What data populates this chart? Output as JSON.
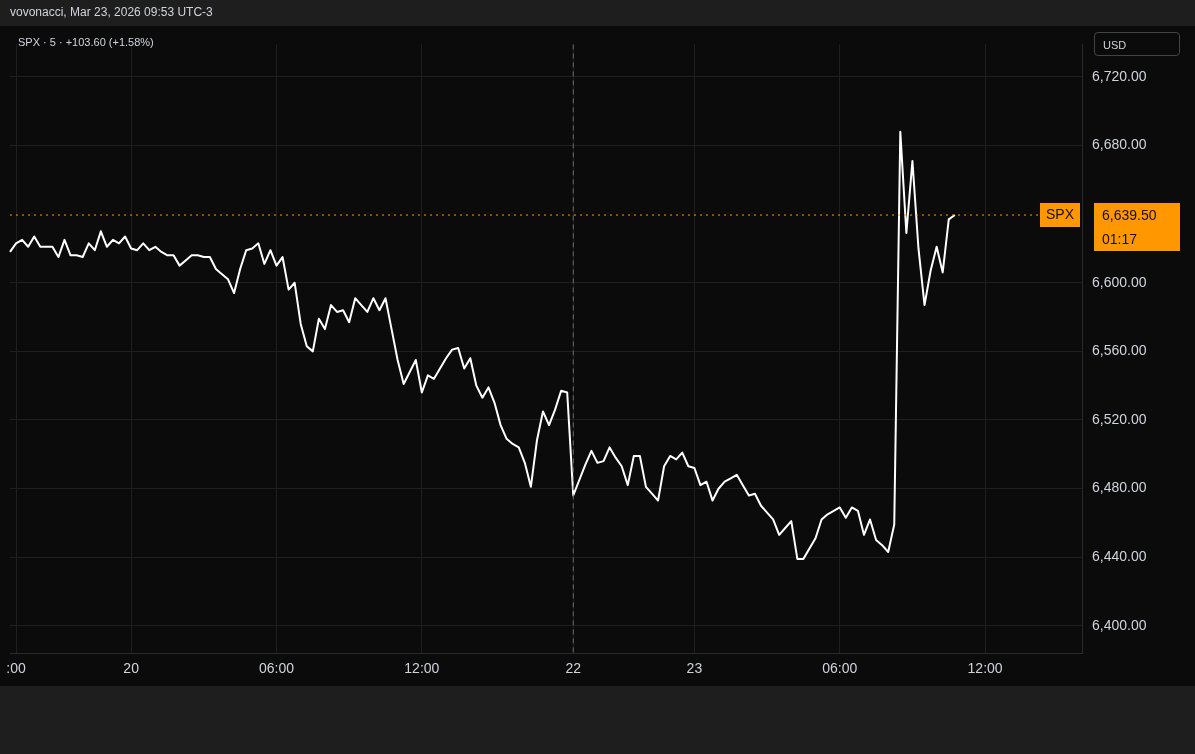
{
  "chart_data": {
    "type": "line",
    "title": "vovonacci, Mar 23, 2026 09:53 UTC-3",
    "subtitle": "SPX · 5 · +103.60 (+1.58%)",
    "annotations": [
      "USD",
      "6,639.50",
      "01:17"
    ],
    "categories": [
      null,
      ":00",
      null,
      null,
      null,
      null,
      null,
      null,
      null,
      null,
      null,
      null,
      null,
      null,
      null,
      null,
      null,
      null,
      null,
      null,
      "20",
      null,
      null,
      null,
      null,
      null,
      null,
      null,
      null,
      null,
      null,
      null,
      null,
      null,
      null,
      null,
      null,
      null,
      null,
      null,
      null,
      null,
      null,
      null,
      "06:00",
      null,
      null,
      null,
      null,
      null,
      null,
      null,
      null,
      null,
      null,
      null,
      null,
      null,
      null,
      null,
      null,
      null,
      null,
      null,
      null,
      null,
      null,
      null,
      "12:00",
      null,
      null,
      null,
      null,
      null,
      null,
      null,
      null,
      null,
      null,
      null,
      null,
      null,
      null,
      null,
      null,
      null,
      null,
      null,
      null,
      null,
      null,
      null,
      null,
      "22",
      null,
      null,
      null,
      null,
      null,
      null,
      null,
      null,
      null,
      null,
      null,
      null,
      null,
      null,
      null,
      null,
      null,
      null,
      null,
      "23",
      null,
      null,
      null,
      null,
      null,
      null,
      null,
      null,
      null,
      null,
      null,
      null,
      null,
      null,
      null,
      null,
      null,
      null,
      null,
      null,
      null,
      null,
      null,
      "06:00",
      null,
      null,
      null,
      null,
      null,
      null,
      null,
      null,
      null,
      null,
      null,
      null,
      null,
      null,
      null,
      null,
      null,
      null,
      null,
      null,
      null,
      null,
      null,
      "12:00",
      null,
      null,
      null,
      null,
      null,
      null,
      null,
      null,
      null,
      null,
      null,
      null,
      null,
      null,
      null,
      null
    ],
    "series": [
      {
        "color": "#ffffff",
        "values": [
          6618,
          6623,
          6625,
          6621,
          6627,
          6621,
          6621,
          6621,
          6615,
          6625,
          6616,
          6616,
          6615,
          6623,
          6619,
          6630,
          6621,
          6625,
          6623,
          6627,
          6620,
          6619,
          6623,
          6619,
          6621,
          6618,
          6616,
          6616,
          6610,
          6613,
          6616,
          6616,
          6615,
          6615,
          6608,
          6605,
          6602,
          6594,
          6608,
          6619,
          6620,
          6623,
          6611,
          6619,
          6610,
          6615,
          6596,
          6600,
          6576,
          6563,
          6560,
          6579,
          6573,
          6587,
          6583,
          6584,
          6577,
          6591,
          6587,
          6583,
          6591,
          6584,
          6591,
          6573,
          6555,
          6541,
          6548,
          6555,
          6536,
          6546,
          6544,
          6550,
          6556,
          6561,
          6562,
          6550,
          6556,
          6540,
          6533,
          6539,
          6530,
          6517,
          6509,
          6506,
          6504,
          6495,
          6481,
          6508,
          6525,
          6517,
          6526,
          6537,
          6536,
          6476,
          6485,
          6494,
          6502,
          6495,
          6496,
          6504,
          6498,
          6493,
          6482,
          6499,
          6499,
          6481,
          6477,
          6473,
          6493,
          6499,
          6497,
          6501,
          6493,
          6492,
          6482,
          6484,
          6473,
          6480,
          6484,
          6486,
          6488,
          6482,
          6476,
          6477,
          6470,
          6466,
          6462,
          6453,
          6457,
          6461,
          6439,
          6439,
          6445,
          6451,
          6462,
          6465,
          6467,
          6469,
          6463,
          6469,
          6467,
          6453,
          6462,
          6450,
          6447,
          6443,
          6459,
          6688,
          6629,
          6671,
          6620,
          6587,
          6607,
          6621,
          6606,
          6637,
          6639.5,
          null,
          null,
          null,
          null,
          null,
          null,
          null,
          null,
          null,
          null,
          null,
          null,
          null,
          null,
          null,
          null,
          null,
          null,
          null,
          null,
          null
        ]
      }
    ],
    "ylim": [
      6384,
      6739
    ],
    "yticks": [
      {
        "value": 6400,
        "label": "6,400.00"
      },
      {
        "value": 6440,
        "label": "6,440.00"
      },
      {
        "value": 6480,
        "label": "6,480.00"
      },
      {
        "value": 6520,
        "label": "6,520.00"
      },
      {
        "value": 6560,
        "label": "6,560.00"
      },
      {
        "value": 6600,
        "label": "6,600.00"
      },
      {
        "value": 6680,
        "label": "6,680.00"
      },
      {
        "value": 6720,
        "label": "6,720.00"
      }
    ],
    "ref_lines": [
      {
        "axis": "y",
        "value": 6639.5,
        "label": "SPX",
        "color": "#ff9800",
        "line_style": "dotted"
      },
      {
        "axis": "x",
        "value": "22",
        "color": "#6a6a6a",
        "line_style": "dashed"
      }
    ],
    "grid": true,
    "legend": false,
    "marker": "none",
    "line_style": "solid"
  }
}
